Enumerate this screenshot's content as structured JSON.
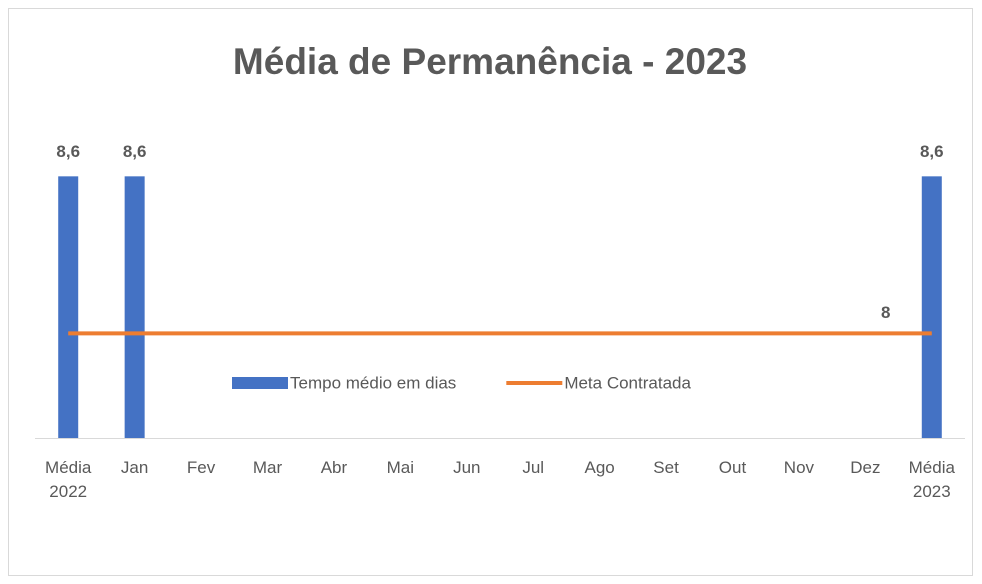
{
  "chart_data": {
    "type": "bar-line",
    "title": "Média de Permanência - 2023",
    "categories": [
      "Média 2022",
      "Jan",
      "Fev",
      "Mar",
      "Abr",
      "Mai",
      "Jun",
      "Jul",
      "Ago",
      "Set",
      "Out",
      "Nov",
      "Dez",
      "Média 2023"
    ],
    "series": [
      {
        "name": "Tempo médio em dias",
        "type": "bar",
        "color": "#4472c4",
        "values": [
          8.6,
          8.6,
          null,
          null,
          null,
          null,
          null,
          null,
          null,
          null,
          null,
          null,
          null,
          8.6
        ],
        "value_labels": [
          "8,6",
          "8,6",
          null,
          null,
          null,
          null,
          null,
          null,
          null,
          null,
          null,
          null,
          null,
          "8,6"
        ]
      },
      {
        "name": "Meta Contratada",
        "type": "line",
        "color": "#ed7d31",
        "values": [
          8,
          8,
          8,
          8,
          8,
          8,
          8,
          8,
          8,
          8,
          8,
          8,
          8,
          8
        ],
        "value_labels": [
          null,
          null,
          null,
          null,
          null,
          null,
          null,
          null,
          null,
          null,
          null,
          null,
          null,
          "8"
        ]
      }
    ],
    "ylim": [
      7.6,
      8.8
    ],
    "legend": "bottom"
  }
}
